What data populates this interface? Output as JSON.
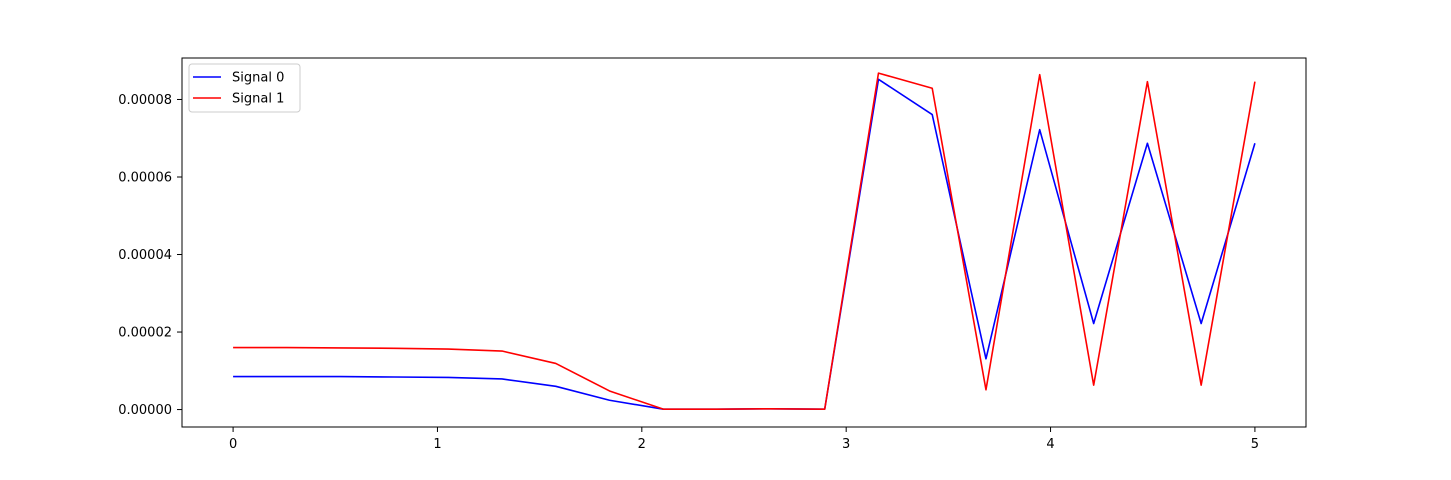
{
  "chart_data": {
    "type": "line",
    "title": "",
    "xlabel": "",
    "ylabel": "",
    "xlim": [
      -0.25,
      5.25
    ],
    "ylim": [
      -4.5e-06,
      9.07e-05
    ],
    "grid": false,
    "legend_position": "top-left",
    "x_ticks": [
      0,
      1,
      2,
      3,
      4,
      5
    ],
    "x_tick_labels": [
      "0",
      "1",
      "2",
      "3",
      "4",
      "5"
    ],
    "y_ticks": [
      0,
      2e-05,
      4e-05,
      6e-05,
      8e-05
    ],
    "y_tick_labels": [
      "0.00000",
      "0.00002",
      "0.00004",
      "0.00006",
      "0.00008"
    ],
    "x": [
      0,
      0.263,
      0.526,
      0.789,
      1.053,
      1.316,
      1.579,
      1.842,
      2.105,
      2.368,
      2.632,
      2.895,
      3.158,
      3.421,
      3.684,
      3.947,
      4.211,
      4.474,
      4.737,
      5.0
    ],
    "series": [
      {
        "name": "Signal 0",
        "color": "#0000ff",
        "values": [
          8.5e-06,
          8.5e-06,
          8.5e-06,
          8.4e-06,
          8.3e-06,
          7.9e-06,
          6e-06,
          2.4e-06,
          1e-07,
          1e-07,
          2e-07,
          1e-07,
          8.52e-05,
          7.61e-05,
          1.31e-05,
          7.22e-05,
          2.22e-05,
          6.87e-05,
          2.22e-05,
          6.87e-05
        ]
      },
      {
        "name": "Signal 1",
        "color": "#ff0000",
        "values": [
          1.6e-05,
          1.6e-05,
          1.59e-05,
          1.58e-05,
          1.56e-05,
          1.51e-05,
          1.19e-05,
          4.8e-06,
          1e-07,
          1e-07,
          2e-07,
          1e-07,
          8.68e-05,
          8.29e-05,
          5.1e-06,
          8.64e-05,
          6.3e-06,
          8.46e-05,
          6.3e-06,
          8.46e-05
        ]
      }
    ]
  }
}
